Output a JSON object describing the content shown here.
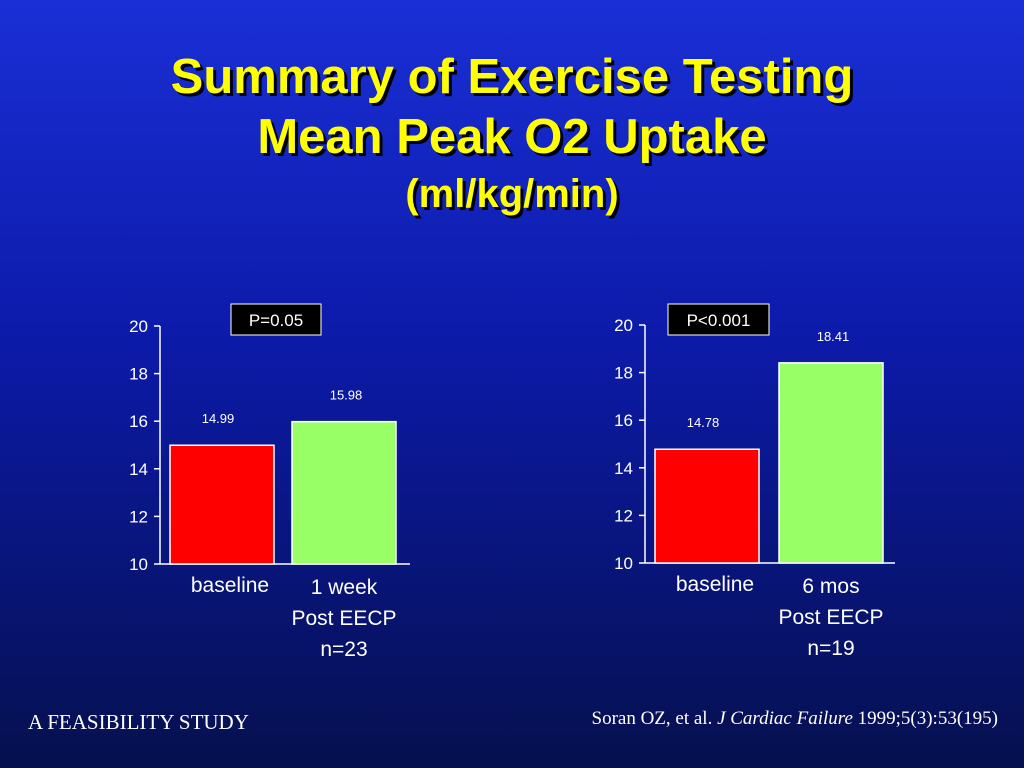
{
  "title": {
    "line1": "Summary of Exercise Testing",
    "line2": "Mean Peak O2 Uptake",
    "line3": "(ml/kg/min)"
  },
  "footer": {
    "left": "A FEASIBILITY STUDY",
    "citation_authors": "Soran OZ, et al.",
    "citation_journal": "J Cardiac Failure",
    "citation_ref": "1999;5(3):53(195)"
  },
  "colors": {
    "baseline_bar": "#ff0000",
    "post_bar": "#99ff66",
    "pvalue_box": "#000000"
  },
  "chart_data": [
    {
      "type": "bar",
      "pvalue": "P=0.05",
      "ylim": [
        10,
        20
      ],
      "yticks": [
        "10",
        "12",
        "14",
        "16",
        "18",
        "20"
      ],
      "categories": [
        [
          "baseline"
        ],
        [
          "1 week",
          "Post EECP",
          "n=23"
        ]
      ],
      "values": [
        14.99,
        15.98
      ],
      "value_labels": [
        "14.99",
        "15.98"
      ]
    },
    {
      "type": "bar",
      "pvalue": "P<0.001",
      "ylim": [
        10,
        20
      ],
      "yticks": [
        "10",
        "12",
        "14",
        "16",
        "18",
        "20"
      ],
      "categories": [
        [
          "baseline"
        ],
        [
          "6 mos",
          "Post EECP",
          "n=19"
        ]
      ],
      "values": [
        14.78,
        18.41
      ],
      "value_labels": [
        "14.78",
        "18.41"
      ]
    }
  ]
}
